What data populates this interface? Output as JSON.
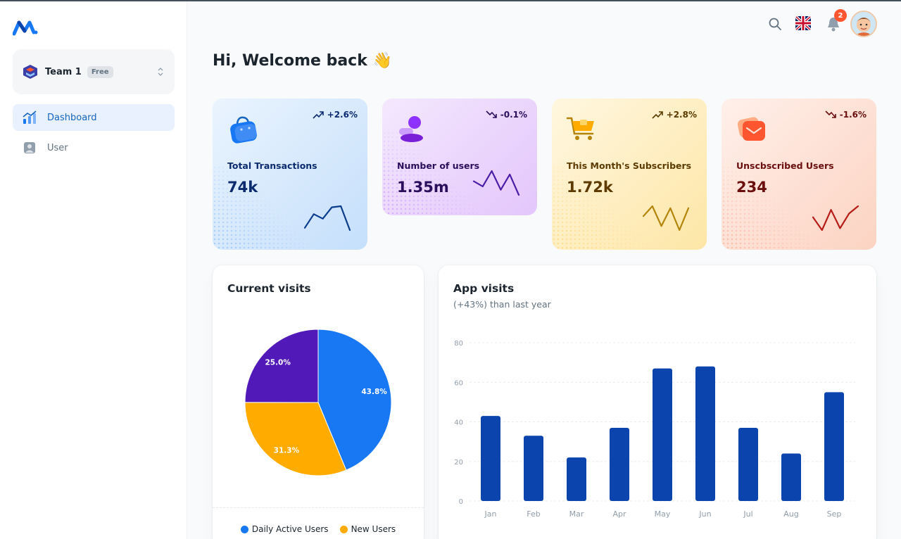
{
  "sidebar": {
    "team": {
      "name": "Team 1",
      "badge": "Free"
    },
    "nav": [
      {
        "label": "Dashboard",
        "icon": "chart-icon"
      },
      {
        "label": "User",
        "icon": "user-icon"
      }
    ]
  },
  "header": {
    "notification_count": "2",
    "language_icon": "uk-flag-icon"
  },
  "main": {
    "welcome": "Hi, Welcome back 👋",
    "stats": [
      {
        "label": "Total Transactions",
        "value": "74k",
        "trend": "+2.6%",
        "direction": "up",
        "color": "#0b3c8c",
        "spark": [
          22,
          10,
          14,
          4,
          3,
          24
        ]
      },
      {
        "label": "Number of users",
        "value": "1.35m",
        "trend": "-0.1%",
        "direction": "down",
        "color": "#4a1fa8",
        "spark": [
          14,
          20,
          2,
          24,
          6,
          30
        ]
      },
      {
        "label": "This Month's Subscribers",
        "value": "1.72k",
        "trend": "+2.8%",
        "direction": "up",
        "color": "#b5840a",
        "spark": [
          12,
          2,
          22,
          4,
          26,
          4
        ]
      },
      {
        "label": "Unscbscribed Users",
        "value": "234",
        "trend": "-1.6%",
        "direction": "down",
        "color": "#b71d18",
        "spark": [
          14,
          28,
          6,
          26,
          10,
          2
        ]
      }
    ]
  },
  "current_visits": {
    "title": "Current visits",
    "legend": [
      "Daily Active Users",
      "New Users"
    ]
  },
  "app_visits": {
    "title": "App visits",
    "subtitle": "(+43%) than last year"
  },
  "chart_data": [
    {
      "type": "pie",
      "title": "Current visits",
      "slices": [
        {
          "label": "43.8%",
          "value": 43.8,
          "color": "#1877f2"
        },
        {
          "label": "31.3%",
          "value": 31.3,
          "color": "#ffab00"
        },
        {
          "label": "25.0%",
          "value": 25.0,
          "color": "#5119b7"
        }
      ],
      "legend": [
        "Daily Active Users",
        "New Users"
      ],
      "legend_colors": [
        "#1877f2",
        "#ffab00"
      ]
    },
    {
      "type": "bar",
      "title": "App visits",
      "subtitle": "(+43%) than last year",
      "categories": [
        "Jan",
        "Feb",
        "Mar",
        "Apr",
        "May",
        "Jun",
        "Jul",
        "Aug",
        "Sep"
      ],
      "values": [
        43,
        33,
        22,
        37,
        67,
        68,
        37,
        24,
        55
      ],
      "yticks": [
        0,
        20,
        40,
        60,
        80
      ],
      "ylim": [
        0,
        80
      ],
      "color": "#0c44ae",
      "grid": true
    }
  ]
}
